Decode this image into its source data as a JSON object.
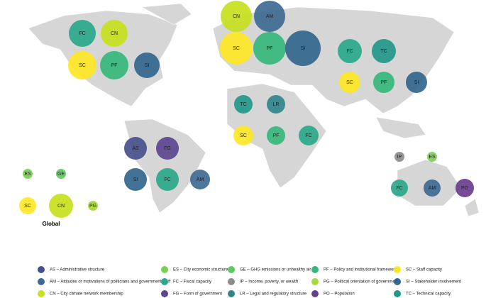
{
  "regions": {
    "north_america": [
      "FC",
      "CN",
      "SC",
      "PF",
      "SI"
    ],
    "europe": [
      "CN",
      "AM",
      "SC",
      "PF",
      "SI"
    ],
    "asia": [
      "FC",
      "TC",
      "SC",
      "PF",
      "SI"
    ],
    "africa": [
      "TC",
      "LR",
      "SC",
      "PF",
      "FC"
    ],
    "south_america": [
      "AS",
      "FG",
      "SI",
      "FC",
      "AM"
    ],
    "oceania": [
      "IP",
      "ES",
      "FC",
      "AM",
      "PO"
    ],
    "global": [
      "ES",
      "GE",
      "SC",
      "CN",
      "PG"
    ]
  },
  "global_label": "Global",
  "legend": [
    {
      "code": "AS",
      "label": "AS – Administrative structure",
      "color": "#46508c"
    },
    {
      "code": "ES",
      "label": "ES – City economic structure",
      "color": "#7ad151"
    },
    {
      "code": "GE",
      "label": "GE – GHG emissions or unhealthy air",
      "color": "#5ec962"
    },
    {
      "code": "PF",
      "label": "PF – Policy and institutional frameworks",
      "color": "#35b779"
    },
    {
      "code": "SC",
      "label": "SC – Staff capacity",
      "color": "#fde725"
    },
    {
      "code": "AM",
      "label": "AM – Attitudes or motivations of politicians and government staff",
      "color": "#3e6a92"
    },
    {
      "code": "FC",
      "label": "FC – Fiscal capacity",
      "color": "#2aa88a"
    },
    {
      "code": "IP",
      "label": "IP – Income, poverty, or wealth",
      "color": "#8c8c8c"
    },
    {
      "code": "PG",
      "label": "PG – Political orientation of government",
      "color": "#a6d93b"
    },
    {
      "code": "SI",
      "label": "SI – Stakeholder involvement",
      "color": "#33668e"
    },
    {
      "code": "CN",
      "label": "CN – City climate network membership",
      "color": "#c8e020"
    },
    {
      "code": "FG",
      "label": "FG – Form of government",
      "color": "#5d4590"
    },
    {
      "code": "LR",
      "label": "LR – Legal and regulatory structure",
      "color": "#31868d"
    },
    {
      "code": "PO",
      "label": "PO – Population",
      "color": "#6a3d8f"
    },
    {
      "code": "TC",
      "label": "TC – Technical capacity",
      "color": "#23988b"
    }
  ]
}
